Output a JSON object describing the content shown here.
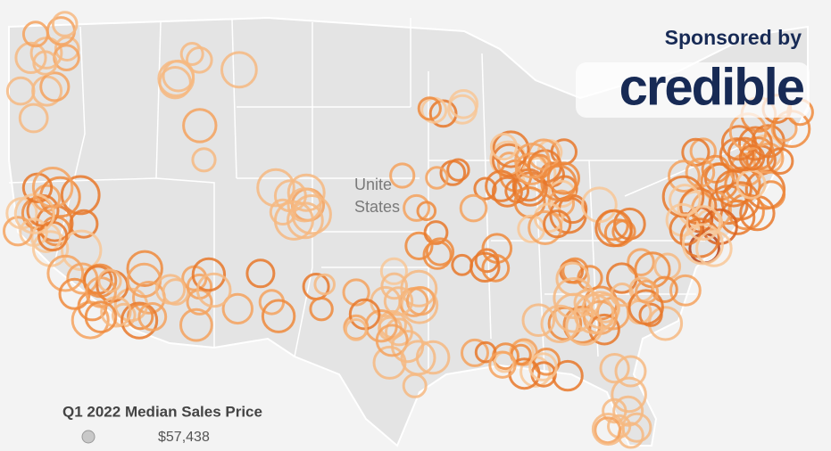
{
  "map": {
    "place_label": [
      "Unite",
      "States"
    ]
  },
  "legend": {
    "title": "Q1 2022 Median Sales Price",
    "value_label": "$57,438"
  },
  "sponsor": {
    "prefix": "Sponsored by",
    "brand": "credible"
  }
}
